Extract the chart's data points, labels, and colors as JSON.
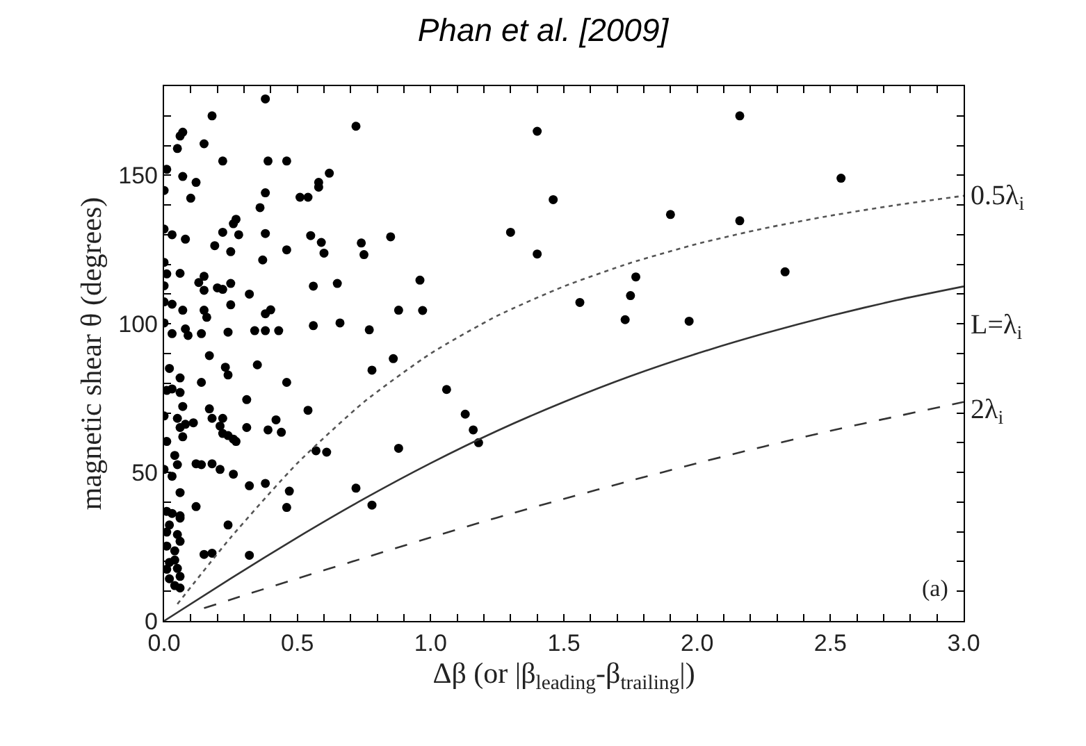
{
  "chart_data": {
    "type": "scatter",
    "title": "Phan et al. [2009]",
    "xlabel": "Δβ (or |β$_{leading}$-β$_{trailing}$|)",
    "ylabel": "magnetic shear θ (degrees)",
    "xlim": [
      0,
      3.0
    ],
    "ylim": [
      0,
      180
    ],
    "xticks": [
      {
        "value": 0,
        "label": "0.0"
      },
      {
        "value": 0.1,
        "label": null
      },
      {
        "value": 0.2,
        "label": null
      },
      {
        "value": 0.3,
        "label": null
      },
      {
        "value": 0.4,
        "label": null
      },
      {
        "value": 0.5,
        "label": "0.5"
      },
      {
        "value": 0.6,
        "label": null
      },
      {
        "value": 0.7,
        "label": null
      },
      {
        "value": 0.8,
        "label": null
      },
      {
        "value": 0.9,
        "label": null
      },
      {
        "value": 1.0,
        "label": "1.0"
      },
      {
        "value": 1.1,
        "label": null
      },
      {
        "value": 1.2,
        "label": null
      },
      {
        "value": 1.3,
        "label": null
      },
      {
        "value": 1.4,
        "label": null
      },
      {
        "value": 1.5,
        "label": "1.5"
      },
      {
        "value": 1.6,
        "label": null
      },
      {
        "value": 1.7,
        "label": null
      },
      {
        "value": 1.8,
        "label": null
      },
      {
        "value": 1.9,
        "label": null
      },
      {
        "value": 2.0,
        "label": "2.0"
      },
      {
        "value": 2.1,
        "label": null
      },
      {
        "value": 2.2,
        "label": null
      },
      {
        "value": 2.3,
        "label": null
      },
      {
        "value": 2.4,
        "label": null
      },
      {
        "value": 2.5,
        "label": "2.5"
      },
      {
        "value": 2.6,
        "label": null
      },
      {
        "value": 2.7,
        "label": null
      },
      {
        "value": 2.8,
        "label": null
      },
      {
        "value": 2.9,
        "label": null
      },
      {
        "value": 3.0,
        "label": "3.0"
      }
    ],
    "yticks": [
      0,
      {
        "value": 10,
        "label": null
      },
      {
        "value": 20,
        "label": null
      },
      {
        "value": 30,
        "label": null
      },
      {
        "value": 40,
        "label": null
      },
      50,
      {
        "value": 60,
        "label": null
      },
      {
        "value": 70,
        "label": null
      },
      {
        "value": 80,
        "label": null
      },
      {
        "value": 90,
        "label": null
      },
      100,
      {
        "value": 110,
        "label": null
      },
      {
        "value": 120,
        "label": null
      },
      {
        "value": 130,
        "label": null
      },
      {
        "value": 140,
        "label": null
      },
      150,
      {
        "value": 160,
        "label": null
      },
      {
        "value": 170,
        "label": null
      }
    ],
    "series": [
      {
        "color": "#000000",
        "marker": "circle",
        "x": [
          1.4,
          2.16,
          2.54,
          1.46,
          1.9,
          2.16,
          1.3,
          1.4,
          2.33,
          0.96,
          1.77,
          1.75,
          0.97,
          1.56,
          1.73,
          1.97,
          1.06,
          1.13,
          1.16,
          1.18,
          0.38,
          0.18,
          0.72,
          0.07,
          0.06,
          0.05,
          0.15,
          0.22,
          0.39,
          0.46,
          0.01,
          0.07,
          0.12,
          0.0,
          0.38,
          0.1,
          0.51,
          0.54,
          0.58,
          0.58,
          0.62,
          0.36,
          0.27,
          0.26,
          0.0,
          0.03,
          0.08,
          0.22,
          0.28,
          0.38,
          0.55,
          0.59,
          0.6,
          0.74,
          0.75,
          0.85,
          0.19,
          0.25,
          0.46,
          0.37,
          0.0,
          0.01,
          0.06,
          0.13,
          0.15,
          0.15,
          0.2,
          0.22,
          0.25,
          0.32,
          0.56,
          0.65,
          0.0,
          0.0,
          0.03,
          0.07,
          0.15,
          0.16,
          0.25,
          0.38,
          0.4,
          0.88,
          0.0,
          0.03,
          0.08,
          0.09,
          0.14,
          0.24,
          0.34,
          0.38,
          0.43,
          0.56,
          0.66,
          0.77,
          0.17,
          0.86,
          0.02,
          0.23,
          0.24,
          0.35,
          0.78,
          0.06,
          0.14,
          0.46,
          0.01,
          0.03,
          0.06,
          0.31,
          0.07,
          0.17,
          0.0,
          0.54,
          0.05,
          0.18,
          0.22,
          0.06,
          0.08,
          0.11,
          0.21,
          0.31,
          0.42,
          0.39,
          0.44,
          0.22,
          0.24,
          0.26,
          0.27,
          0.07,
          0.01,
          0.57,
          0.61,
          0.88,
          0.04,
          0.05,
          0.12,
          0.14,
          0.18,
          0.21,
          0.26,
          0.0,
          0.03,
          0.32,
          0.38,
          0.47,
          0.72,
          0.06,
          0.46,
          0.78,
          0.12,
          0.01,
          0.03,
          0.06,
          0.06,
          0.24,
          0.02,
          0.01,
          0.05,
          0.06,
          0.01,
          0.04,
          0.15,
          0.18,
          0.32,
          0.02,
          0.04,
          0.01,
          0.05,
          0.02,
          0.06,
          0.06,
          0.04
        ],
        "values": [
          164.8,
          170,
          149,
          141.8,
          136.8,
          134.7,
          130.8,
          123.5,
          117.5,
          114.7,
          115.8,
          109.5,
          104.5,
          107.2,
          101.4,
          100.9,
          77.9,
          69.6,
          64.3,
          60,
          175.7,
          170,
          166.5,
          164.5,
          163.2,
          159,
          160.6,
          154.8,
          154.8,
          154.8,
          152,
          149.6,
          147.6,
          144.9,
          144.1,
          142.3,
          142.6,
          142.6,
          147.6,
          146,
          150.7,
          139.1,
          135.2,
          133.7,
          131.9,
          130,
          128.5,
          130.8,
          130,
          130.4,
          129.7,
          127.4,
          123.8,
          127.2,
          123.3,
          129.3,
          126.3,
          124.3,
          124.9,
          121.5,
          120.7,
          116.8,
          117,
          113.9,
          116,
          111.3,
          112.1,
          111.6,
          113.6,
          110,
          112.7,
          113.6,
          112.8,
          107.4,
          106.6,
          104.6,
          104.6,
          102.2,
          106.4,
          103.4,
          104.7,
          104.6,
          100.3,
          96.7,
          98.3,
          96.1,
          96.7,
          97.2,
          97.7,
          97.7,
          97.7,
          99.4,
          100.3,
          98,
          89.3,
          88.3,
          85,
          85.4,
          82.8,
          86.2,
          84.4,
          81.8,
          80.3,
          80.3,
          77.6,
          78.1,
          76.9,
          74.5,
          72.2,
          71.4,
          69,
          70.9,
          68.2,
          68.2,
          68.2,
          65.1,
          66.2,
          66.7,
          65.6,
          65.1,
          67.7,
          64.3,
          63.5,
          63.1,
          62.4,
          61.2,
          60.4,
          62,
          60.4,
          57.3,
          56.8,
          58.1,
          55.7,
          52.6,
          52.9,
          52.6,
          52.9,
          51,
          49.4,
          51,
          48.7,
          45.5,
          46.3,
          43.7,
          44.7,
          43.2,
          38.2,
          39,
          38.5,
          36.9,
          36.2,
          35.4,
          34.6,
          32.3,
          32.3,
          29.9,
          29.1,
          26.8,
          25.2,
          23.6,
          22.4,
          22.8,
          22.1,
          19.7,
          20.5,
          17.4,
          17.7,
          14.2,
          15,
          11.1,
          11.9
        ]
      },
      {
        "type": "line",
        "color": "#555555",
        "line_style": "dotted",
        "marker": "none",
        "x": [
          0.05,
          0.25,
          0.5,
          0.75,
          1,
          1.25,
          1.5,
          1.75,
          2,
          2.25,
          2.5,
          2.75,
          3
        ],
        "values": [
          5.7,
          28.1,
          53.1,
          73.7,
          90,
          102.7,
          112.6,
          120.5,
          126.9,
          132.1,
          136.4,
          140.0,
          143.1
        ]
      },
      {
        "type": "line",
        "color": "#333333",
        "line_style": "solid",
        "marker": "none",
        "x": [
          0,
          0.25,
          0.5,
          0.75,
          1,
          1.25,
          1.5,
          1.75,
          2,
          2.25,
          2.5,
          2.75,
          3
        ],
        "values": [
          0,
          14.3,
          28.1,
          41.1,
          53.1,
          64.0,
          73.7,
          82.4,
          90,
          96.7,
          102.7,
          108.0,
          112.6
        ]
      },
      {
        "type": "line",
        "color": "#333333",
        "line_style": "dashed",
        "marker": "none",
        "x": [
          0.15,
          0.25,
          0.5,
          0.75,
          1,
          1.25,
          1.5,
          1.75,
          2,
          2.25,
          2.5,
          2.75,
          3
        ],
        "values": [
          4.3,
          7.2,
          14.3,
          21.2,
          28.1,
          34.8,
          41.1,
          47.2,
          53.1,
          58.7,
          64.0,
          68.9,
          73.7
        ]
      }
    ],
    "annotations": [
      "0.5λ$_{i}$",
      "L=λ$_{i}$",
      "2λ$_{i}$",
      "(a)"
    ]
  }
}
